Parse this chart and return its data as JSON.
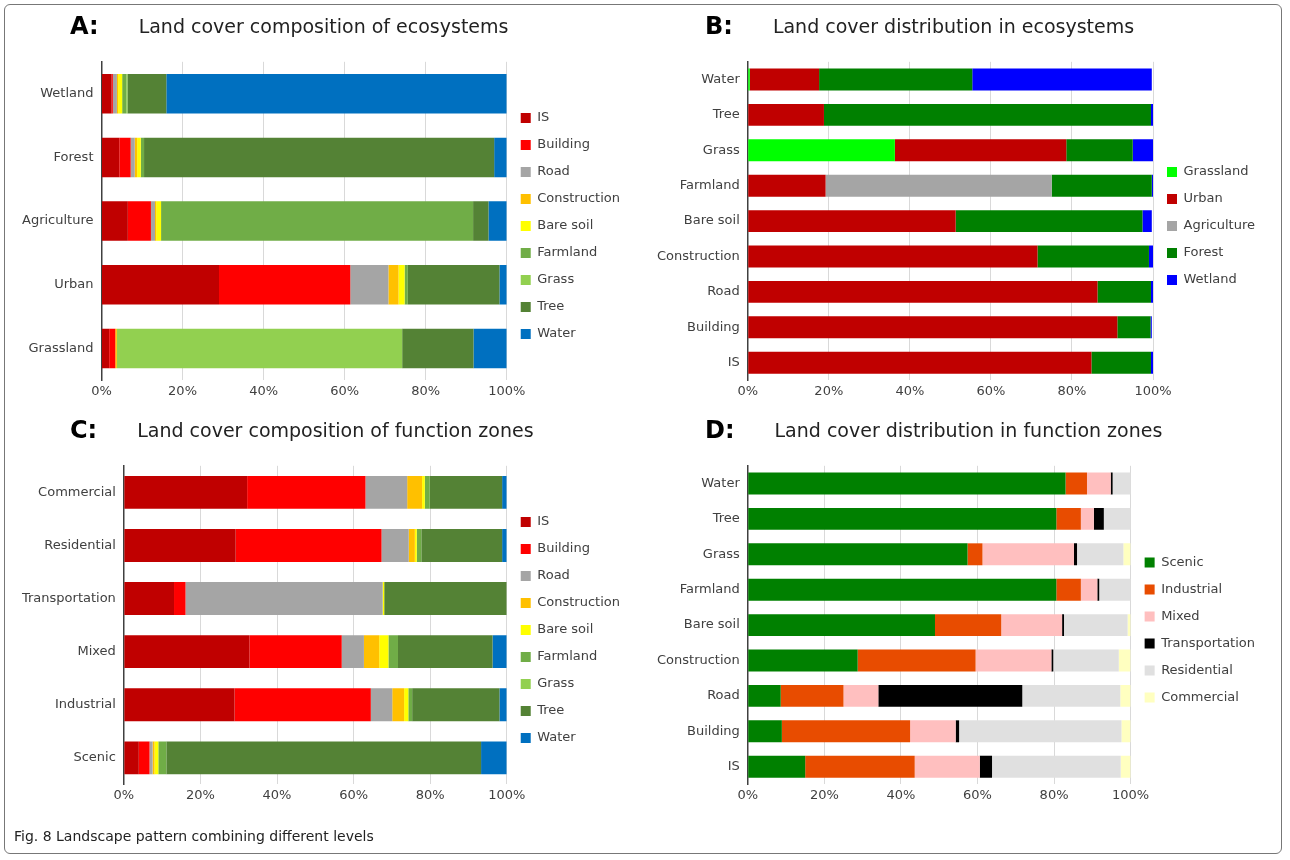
{
  "chart_data": [
    {
      "type": "bar",
      "title": "Land cover composition of ecosystems",
      "annotations": [
        "A:"
      ],
      "orientation": "horizontal",
      "stacked": true,
      "legend": "right",
      "grid": "x",
      "xlim": [
        0,
        100
      ],
      "xticks": [
        {
          "value": 0,
          "label": "0%"
        },
        {
          "value": 20,
          "label": "20%"
        },
        {
          "value": 40,
          "label": "40%"
        },
        {
          "value": 60,
          "label": "60%"
        },
        {
          "value": 80,
          "label": "80%"
        },
        {
          "value": 100,
          "label": "100%"
        }
      ],
      "categories": [
        "Wetland",
        "Forest",
        "Agriculture",
        "Urban",
        "Grassland"
      ],
      "series": [
        {
          "name": "IS",
          "color": "#c00000",
          "values": [
            2.5,
            4.4,
            6.5,
            29.0,
            1.9
          ]
        },
        {
          "name": "Building",
          "color": "#ff0000",
          "values": [
            0.3,
            2.8,
            5.7,
            32.4,
            1.5
          ]
        },
        {
          "name": "Road",
          "color": "#a5a5a5",
          "values": [
            1.0,
            1.0,
            1.0,
            9.4,
            0
          ]
        },
        {
          "name": "Construction",
          "color": "#ffc000",
          "values": [
            0.3,
            0.6,
            0.3,
            2.5,
            0.4
          ]
        },
        {
          "name": "Bare soil",
          "color": "#ffff00",
          "values": [
            1.0,
            0.9,
            1.2,
            1.5,
            0
          ]
        },
        {
          "name": "Farmland",
          "color": "#70ad47",
          "values": [
            1.0,
            0.8,
            77.0,
            0.8,
            0
          ]
        },
        {
          "name": "Grass",
          "color": "#92d050",
          "values": [
            0.3,
            0,
            0,
            0,
            70.4
          ]
        },
        {
          "name": "Tree",
          "color": "#548235",
          "values": [
            9.6,
            86.4,
            3.8,
            22.6,
            17.6
          ]
        },
        {
          "name": "Water",
          "color": "#0070c0",
          "values": [
            84.0,
            3.1,
            4.5,
            1.8,
            8.2
          ]
        }
      ]
    },
    {
      "type": "bar",
      "title": "Land cover distribution in ecosystems",
      "annotations": [
        "B:"
      ],
      "orientation": "horizontal",
      "stacked": true,
      "legend": "right",
      "grid": "x",
      "xlim": [
        0,
        100
      ],
      "xticks": [
        {
          "value": 0,
          "label": "0%"
        },
        {
          "value": 20,
          "label": "20%"
        },
        {
          "value": 40,
          "label": "40%"
        },
        {
          "value": 60,
          "label": "60%"
        },
        {
          "value": 80,
          "label": "80%"
        },
        {
          "value": 100,
          "label": "100%"
        }
      ],
      "categories": [
        "Water",
        "Tree",
        "Grass",
        "Farmland",
        "Bare soil",
        "Construction",
        "Road",
        "Building",
        "IS"
      ],
      "series": [
        {
          "name": "Grassland",
          "color": "#00ff00",
          "values": [
            0.5,
            0,
            36.3,
            0,
            0,
            0,
            0,
            0,
            0
          ]
        },
        {
          "name": "Urban",
          "color": "#c00000",
          "values": [
            17.1,
            18.8,
            42.3,
            19.2,
            51.3,
            71.5,
            86.3,
            91.2,
            84.8
          ]
        },
        {
          "name": "Agriculture",
          "color": "#a5a5a5",
          "values": [
            0,
            0,
            0,
            55.8,
            0,
            0,
            0,
            0,
            0
          ]
        },
        {
          "name": "Forest",
          "color": "#008000",
          "values": [
            37.8,
            80.7,
            16.4,
            24.7,
            46.1,
            27.5,
            13.2,
            8.2,
            14.7
          ]
        },
        {
          "name": "Wetland",
          "color": "#0000ff",
          "values": [
            44.3,
            0.5,
            5.0,
            0.3,
            2.3,
            1.0,
            0.5,
            0.3,
            0.5
          ]
        }
      ]
    },
    {
      "type": "bar",
      "title": "Land cover composition of function zones",
      "annotations": [
        "C:"
      ],
      "orientation": "horizontal",
      "stacked": true,
      "legend": "right",
      "grid": "x",
      "xlim": [
        0,
        100
      ],
      "xticks": [
        {
          "value": 0,
          "label": "0%"
        },
        {
          "value": 20,
          "label": "20%"
        },
        {
          "value": 40,
          "label": "40%"
        },
        {
          "value": 60,
          "label": "60%"
        },
        {
          "value": 80,
          "label": "80%"
        },
        {
          "value": 100,
          "label": "100%"
        }
      ],
      "categories": [
        "Commercial",
        "Residential",
        "Transportation",
        "Mixed",
        "Industrial",
        "Scenic"
      ],
      "series": [
        {
          "name": "IS",
          "color": "#c00000",
          "values": [
            32.2,
            29.2,
            13.1,
            32.8,
            28.9,
            3.9
          ]
        },
        {
          "name": "Building",
          "color": "#ff0000",
          "values": [
            30.9,
            38.1,
            3.0,
            24.1,
            35.6,
            2.8
          ]
        },
        {
          "name": "Road",
          "color": "#a5a5a5",
          "values": [
            10.9,
            7.1,
            51.5,
            5.8,
            5.6,
            0.8
          ]
        },
        {
          "name": "Construction",
          "color": "#ffc000",
          "values": [
            3.9,
            1.6,
            0,
            4.0,
            3.1,
            0.5
          ]
        },
        {
          "name": "Bare soil",
          "color": "#ffff00",
          "values": [
            0.7,
            0.5,
            0.4,
            2.4,
            1.1,
            1.0
          ]
        },
        {
          "name": "Farmland",
          "color": "#70ad47",
          "values": [
            1.3,
            1.2,
            0,
            2.5,
            1.0,
            2.1
          ]
        },
        {
          "name": "Grass",
          "color": "#92d050",
          "values": [
            0,
            0,
            0,
            0,
            0,
            0
          ]
        },
        {
          "name": "Tree",
          "color": "#548235",
          "values": [
            18.9,
            21.1,
            32.0,
            24.7,
            22.8,
            82.2
          ]
        },
        {
          "name": "Water",
          "color": "#0070c0",
          "values": [
            1.2,
            1.2,
            0,
            3.7,
            1.9,
            6.7
          ]
        }
      ]
    },
    {
      "type": "bar",
      "title": "Land cover distribution in function zones",
      "annotations": [
        "D:",
        "Fig. 8 Landscape pattern combining different levels"
      ],
      "orientation": "horizontal",
      "stacked": true,
      "legend": "right",
      "grid": "x",
      "xlim": [
        0,
        100
      ],
      "xticks": [
        {
          "value": 0,
          "label": "0%"
        },
        {
          "value": 20,
          "label": "20%"
        },
        {
          "value": 40,
          "label": "40%"
        },
        {
          "value": 60,
          "label": "60%"
        },
        {
          "value": 80,
          "label": "80%"
        },
        {
          "value": 100,
          "label": "100%"
        }
      ],
      "categories": [
        "Water",
        "Tree",
        "Grass",
        "Farmland",
        "Bare soil",
        "Construction",
        "Road",
        "Building",
        "IS"
      ],
      "series": [
        {
          "name": "Scenic",
          "color": "#008000",
          "values": [
            83.0,
            80.6,
            57.4,
            80.6,
            48.9,
            28.7,
            8.6,
            8.9,
            15.0
          ]
        },
        {
          "name": "Industrial",
          "color": "#e84c00",
          "values": [
            5.6,
            6.4,
            3.9,
            6.4,
            17.3,
            30.8,
            16.4,
            33.5,
            28.6
          ]
        },
        {
          "name": "Mixed",
          "color": "#ffbfbf",
          "values": [
            6.2,
            3.4,
            23.9,
            4.3,
            15.9,
            19.8,
            9.1,
            11.9,
            17.0
          ]
        },
        {
          "name": "Transportation",
          "color": "#000000",
          "values": [
            0.5,
            2.6,
            0.8,
            0.5,
            0.5,
            0.5,
            37.6,
            0.9,
            3.2
          ]
        },
        {
          "name": "Residential",
          "color": "#e0e0e0",
          "values": [
            4.7,
            7.0,
            12.1,
            8.2,
            16.6,
            17.1,
            25.6,
            42.4,
            33.6
          ]
        },
        {
          "name": "Commercial",
          "color": "#ffffc0",
          "values": [
            0,
            0,
            1.9,
            0,
            0.8,
            3.1,
            2.7,
            2.4,
            2.6
          ]
        }
      ]
    }
  ]
}
